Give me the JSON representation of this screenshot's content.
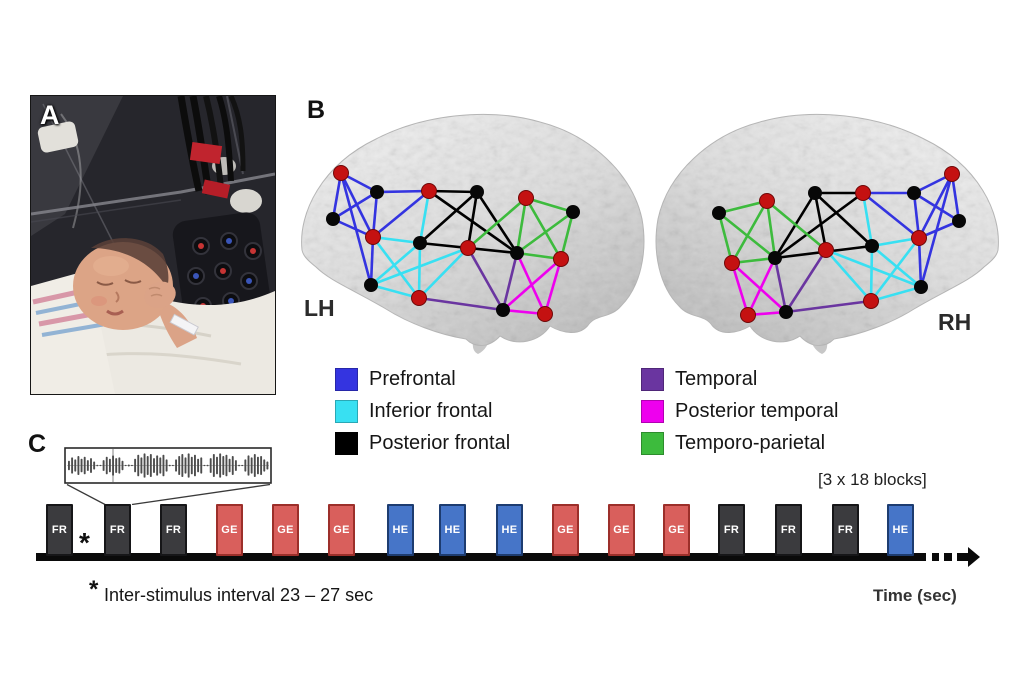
{
  "figure": {
    "panels": {
      "a": {
        "label": "A"
      },
      "b": {
        "label": "B",
        "left_hemisphere_label": "LH",
        "right_hemisphere_label": "RH",
        "legend": {
          "left_column": [
            {
              "key": "prefrontal",
              "label": "Prefrontal"
            },
            {
              "key": "inferior_frontal",
              "label": "Inferior frontal"
            },
            {
              "key": "posterior_frontal",
              "label": "Posterior frontal"
            }
          ],
          "right_column": [
            {
              "key": "temporal",
              "label": "Temporal"
            },
            {
              "key": "posterior_temporal",
              "label": "Posterior temporal"
            },
            {
              "key": "temporo_parietal",
              "label": "Temporo-parietal"
            }
          ]
        }
      },
      "c": {
        "label": "C",
        "blocks_count_note": "[3 x 18 blocks]",
        "asterisk": "*",
        "isi_note": "Inter-stimulus interval 23 – 27 sec",
        "time_axis_label": "Time (sec)",
        "block_sequence": [
          "FR",
          "FR",
          "FR",
          "GE",
          "GE",
          "GE",
          "HE",
          "HE",
          "HE",
          "GE",
          "GE",
          "GE",
          "FR",
          "FR",
          "FR",
          "HE"
        ]
      }
    },
    "colors": {
      "prefrontal": "#3434e0",
      "inferior_frontal": "#38e0f2",
      "posterior_frontal": "#000000",
      "temporal": "#6a35a0",
      "posterior_temporal": "#ee00ee",
      "temporo_parietal": "#3dbb3d",
      "node_red": "#c41111",
      "node_black": "#070707",
      "block_fr_fill": "#3b3b3e",
      "block_fr_border": "#161618",
      "block_ge_fill": "#d95f5c",
      "block_ge_border": "#9c2f2a",
      "block_he_fill": "#4675c8",
      "block_he_border": "#1d3c70"
    },
    "network": {
      "lh": {
        "nodes": [
          [
            51,
            78,
            "red"
          ],
          [
            87,
            97,
            "black"
          ],
          [
            139,
            96,
            "red"
          ],
          [
            187,
            97,
            "black"
          ],
          [
            236,
            103,
            "red"
          ],
          [
            283,
            117,
            "black"
          ],
          [
            43,
            124,
            "black"
          ],
          [
            83,
            142,
            "red"
          ],
          [
            130,
            148,
            "black"
          ],
          [
            178,
            153,
            "red"
          ],
          [
            227,
            158,
            "black"
          ],
          [
            271,
            164,
            "red"
          ],
          [
            81,
            190,
            "black"
          ],
          [
            129,
            203,
            "red"
          ],
          [
            213,
            215,
            "black"
          ],
          [
            255,
            219,
            "red"
          ]
        ],
        "edges": [
          {
            "region": "posterior_frontal",
            "pairs": [
              [
                2,
                3
              ],
              [
                3,
                8
              ],
              [
                3,
                9
              ],
              [
                2,
                10
              ],
              [
                8,
                10
              ],
              [
                3,
                10
              ]
            ]
          },
          {
            "region": "temporo_parietal",
            "pairs": [
              [
                4,
                5
              ],
              [
                4,
                10
              ],
              [
                4,
                11
              ],
              [
                5,
                11
              ],
              [
                10,
                11
              ],
              [
                9,
                4
              ],
              [
                10,
                5
              ]
            ]
          },
          {
            "region": "temporal",
            "pairs": [
              [
                9,
                14
              ],
              [
                13,
                14
              ],
              [
                10,
                14
              ]
            ]
          },
          {
            "region": "posterior_temporal",
            "pairs": [
              [
                11,
                15
              ],
              [
                11,
                14
              ],
              [
                10,
                15
              ],
              [
                14,
                15
              ]
            ]
          },
          {
            "region": "prefrontal",
            "pairs": [
              [
                0,
                1
              ],
              [
                0,
                6
              ],
              [
                0,
                7
              ],
              [
                0,
                12
              ],
              [
                1,
                6
              ],
              [
                1,
                7
              ],
              [
                6,
                7
              ],
              [
                7,
                12
              ],
              [
                1,
                2
              ],
              [
                2,
                7
              ]
            ]
          },
          {
            "region": "inferior_frontal",
            "pairs": [
              [
                2,
                8
              ],
              [
                7,
                8
              ],
              [
                7,
                13
              ],
              [
                8,
                12
              ],
              [
                8,
                13
              ],
              [
                12,
                13
              ],
              [
                13,
                9
              ],
              [
                12,
                9
              ]
            ]
          }
        ]
      },
      "rh": {
        "nodes": [
          [
            69,
            118,
            "black"
          ],
          [
            117,
            106,
            "red"
          ],
          [
            165,
            98,
            "black"
          ],
          [
            213,
            98,
            "red"
          ],
          [
            264,
            98,
            "black"
          ],
          [
            302,
            79,
            "red"
          ],
          [
            309,
            126,
            "black"
          ],
          [
            269,
            143,
            "red"
          ],
          [
            222,
            151,
            "black"
          ],
          [
            176,
            155,
            "red"
          ],
          [
            125,
            163,
            "black"
          ],
          [
            82,
            168,
            "red"
          ],
          [
            271,
            192,
            "black"
          ],
          [
            221,
            206,
            "red"
          ],
          [
            136,
            217,
            "black"
          ],
          [
            98,
            220,
            "red"
          ]
        ],
        "edges": [
          {
            "region": "posterior_frontal",
            "pairs": [
              [
                3,
                2
              ],
              [
                2,
                8
              ],
              [
                2,
                9
              ],
              [
                3,
                10
              ],
              [
                8,
                10
              ],
              [
                2,
                10
              ]
            ]
          },
          {
            "region": "temporo_parietal",
            "pairs": [
              [
                1,
                0
              ],
              [
                1,
                10
              ],
              [
                1,
                11
              ],
              [
                0,
                11
              ],
              [
                10,
                11
              ],
              [
                9,
                1
              ],
              [
                10,
                0
              ]
            ]
          },
          {
            "region": "temporal",
            "pairs": [
              [
                9,
                14
              ],
              [
                13,
                14
              ],
              [
                10,
                14
              ]
            ]
          },
          {
            "region": "posterior_temporal",
            "pairs": [
              [
                11,
                15
              ],
              [
                11,
                14
              ],
              [
                10,
                15
              ],
              [
                14,
                15
              ]
            ]
          },
          {
            "region": "prefrontal",
            "pairs": [
              [
                5,
                4
              ],
              [
                5,
                6
              ],
              [
                5,
                7
              ],
              [
                5,
                12
              ],
              [
                4,
                6
              ],
              [
                4,
                7
              ],
              [
                6,
                7
              ],
              [
                7,
                12
              ],
              [
                4,
                3
              ],
              [
                3,
                7
              ]
            ]
          },
          {
            "region": "inferior_frontal",
            "pairs": [
              [
                3,
                8
              ],
              [
                7,
                8
              ],
              [
                7,
                13
              ],
              [
                8,
                12
              ],
              [
                8,
                13
              ],
              [
                12,
                13
              ],
              [
                13,
                9
              ],
              [
                12,
                9
              ]
            ]
          }
        ]
      }
    },
    "waveform_amplitudes": [
      0.35,
      0.6,
      0.45,
      0.7,
      0.5,
      0.65,
      0.4,
      0.55,
      0.3,
      0.06,
      0.05,
      0.4,
      0.65,
      0.5,
      0.75,
      0.55,
      0.6,
      0.35,
      0.05,
      0.07,
      0.05,
      0.5,
      0.8,
      0.6,
      0.9,
      0.7,
      0.85,
      0.55,
      0.75,
      0.6,
      0.8,
      0.45,
      0.06,
      0.05,
      0.45,
      0.7,
      0.85,
      0.6,
      0.9,
      0.65,
      0.8,
      0.5,
      0.6,
      0.05,
      0.06,
      0.55,
      0.85,
      0.65,
      0.9,
      0.7,
      0.8,
      0.5,
      0.7,
      0.4,
      0.06,
      0.05,
      0.45,
      0.75,
      0.6,
      0.85,
      0.65,
      0.7,
      0.45,
      0.3
    ]
  }
}
